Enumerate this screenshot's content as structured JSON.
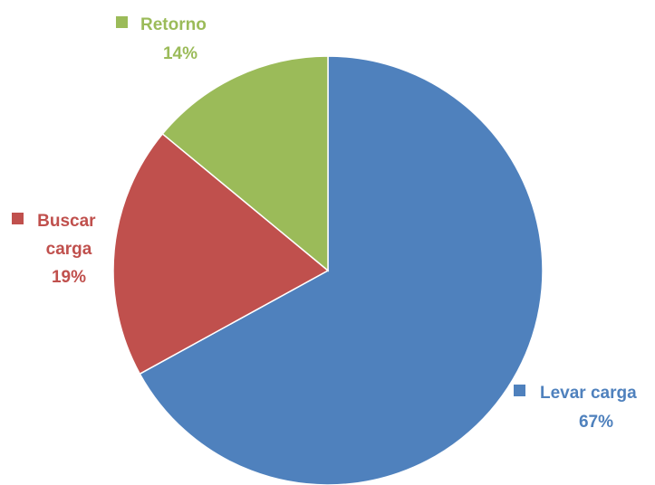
{
  "chart_data": {
    "type": "pie",
    "title": "",
    "start": "top, clockwise",
    "labels_position": "outside with legend markers",
    "slices": [
      {
        "label": "Levar carga",
        "percent_label": "67%",
        "value": 67,
        "color": "#4F81BD"
      },
      {
        "label": "Buscar carga",
        "percent_label": "19%",
        "value": 19,
        "color": "#C0504D"
      },
      {
        "label": "Retorno",
        "percent_label": "14%",
        "value": 14,
        "color": "#9BBB59"
      }
    ]
  }
}
